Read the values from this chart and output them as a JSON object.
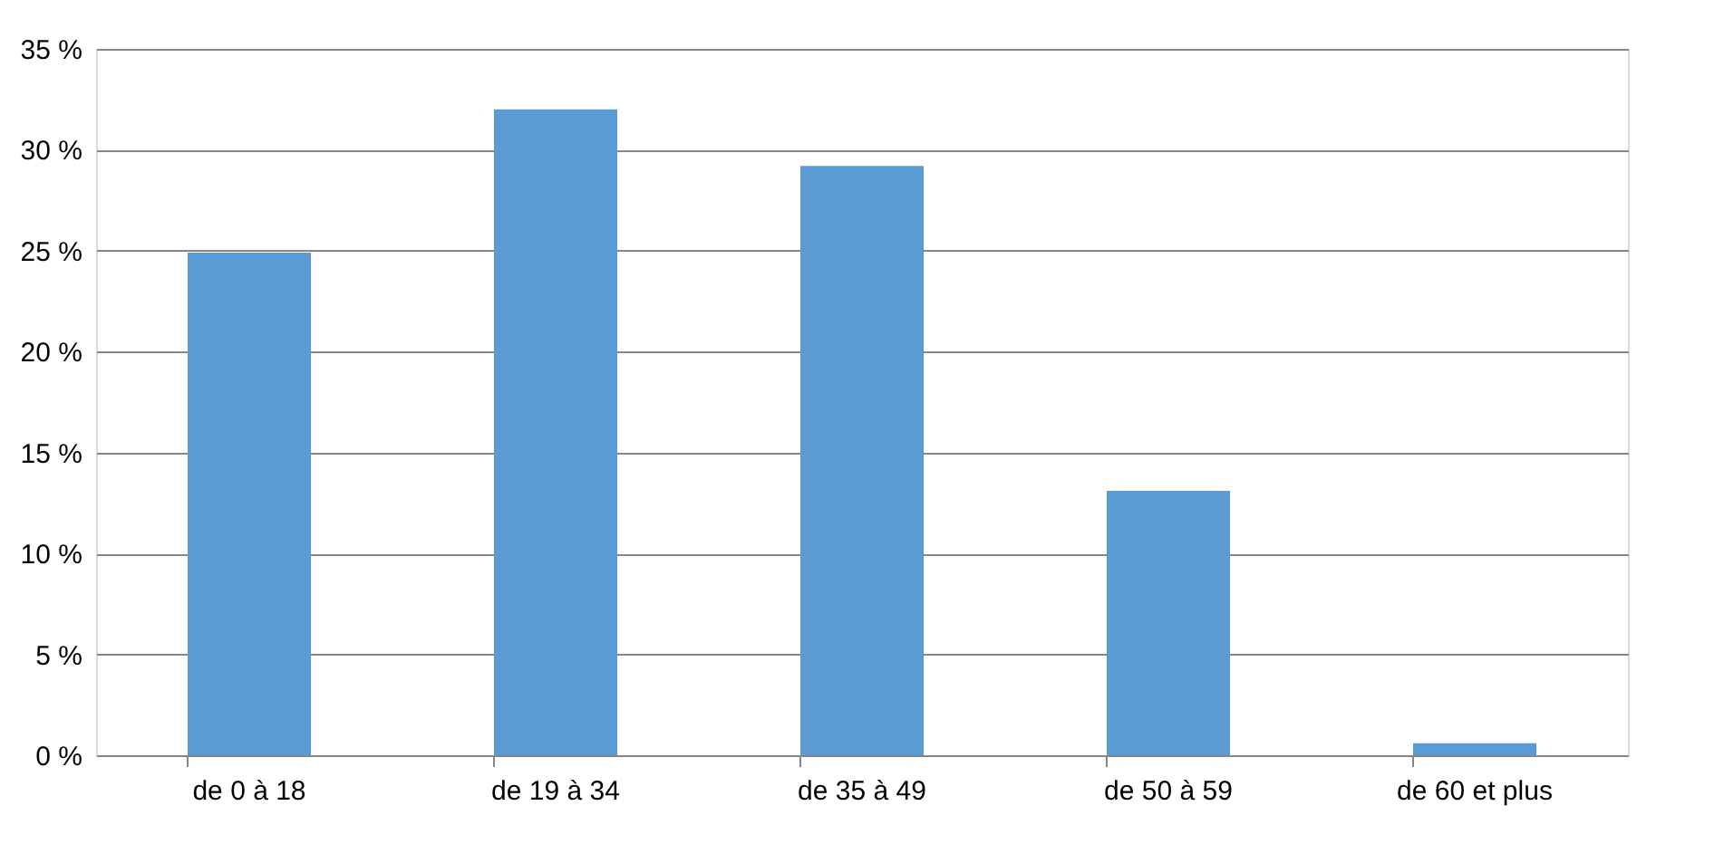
{
  "chart_data": {
    "type": "bar",
    "categories": [
      "de 0 à 18",
      "de 19 à 34",
      "de 35 à 49",
      "de 50 à 59",
      "de 60 et plus"
    ],
    "series": [
      {
        "color": "#5b9bd5",
        "values": [
          24.9,
          32.0,
          29.2,
          13.1,
          0.6
        ]
      }
    ],
    "ylim": [
      0,
      35
    ],
    "yticks": [
      {
        "value": 0,
        "label": "0 %"
      },
      {
        "value": 5,
        "label": "5 %"
      },
      {
        "value": 10,
        "label": "10 %"
      },
      {
        "value": 15,
        "label": "15 %"
      },
      {
        "value": 20,
        "label": "20 %"
      },
      {
        "value": 25,
        "label": "25 %"
      },
      {
        "value": 30,
        "label": "30 %"
      },
      {
        "value": 35,
        "label": "35 %"
      }
    ],
    "grid": "y",
    "legend": false
  }
}
